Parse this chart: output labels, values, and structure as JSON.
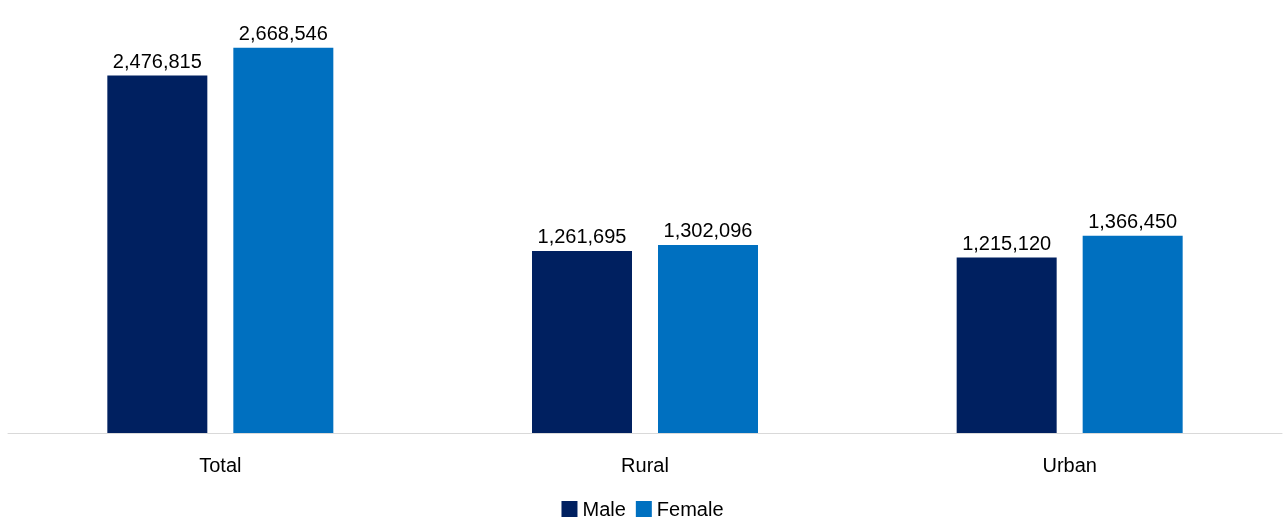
{
  "chart_data": {
    "type": "bar",
    "categories": [
      "Total",
      "Rural",
      "Urban"
    ],
    "series": [
      {
        "name": "Male",
        "color": "#002060",
        "values": [
          2476815,
          1261695,
          1215120
        ],
        "value_labels": [
          "2,476,815",
          "1,261,695",
          "1,215,120"
        ]
      },
      {
        "name": "Female",
        "color": "#0070c0",
        "values": [
          2668546,
          1302096,
          1366450
        ],
        "value_labels": [
          "2,668,546",
          "1,302,096",
          "1,366,450"
        ]
      }
    ],
    "legend": "bottom"
  }
}
